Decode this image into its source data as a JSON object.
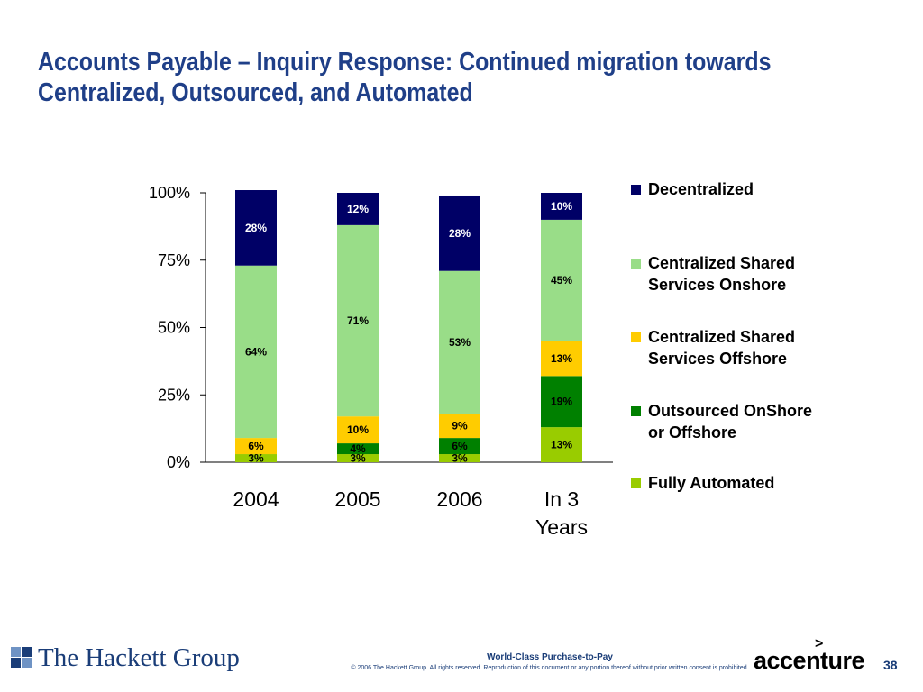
{
  "slide": {
    "title_line1": "Accounts Payable – Inquiry Response:  Continued migration towards",
    "title_line2": "Centralized, Outsourced, and Automated",
    "page_number": "38"
  },
  "footer": {
    "org": "The Hackett Group",
    "title": "World-Class Purchase-to-Pay",
    "copyright": "© 2006 The Hackett Group.  All rights reserved. Reproduction of this document or any portion thereof without prior written consent is prohibited.",
    "partner": "accenture",
    "partner_mark": ">"
  },
  "chart_data": {
    "type": "bar",
    "stacked": true,
    "categories": [
      "2004",
      "2005",
      "2006",
      "In 3 Years"
    ],
    "category_lines": [
      [
        "2004"
      ],
      [
        "2005"
      ],
      [
        "2006"
      ],
      [
        "In 3",
        "Years"
      ]
    ],
    "ylim": [
      0,
      100
    ],
    "yticks": [
      0,
      25,
      50,
      75,
      100
    ],
    "ytick_labels": [
      "0%",
      "25%",
      "50%",
      "75%",
      "100%"
    ],
    "legend_position": "right",
    "series": [
      {
        "name": "Fully Automated",
        "legend_lines": [
          "Fully Automated"
        ],
        "color": "#99cc00",
        "label_color": "#000000",
        "values": [
          3,
          3,
          3,
          13
        ],
        "labels": [
          "3%",
          "3%",
          "3%",
          "13%"
        ]
      },
      {
        "name": "Outsourced OnShore or Offshore",
        "legend_lines": [
          "Outsourced OnShore",
          "or Offshore"
        ],
        "color": "#008000",
        "label_color": "#000000",
        "values": [
          0,
          4,
          6,
          19
        ],
        "labels": [
          "",
          "4%",
          "6%",
          "19%"
        ]
      },
      {
        "name": "Centralized Shared Services Offshore",
        "legend_lines": [
          "Centralized Shared",
          "Services Offshore"
        ],
        "color": "#ffcc00",
        "label_color": "#000000",
        "values": [
          6,
          10,
          9,
          13
        ],
        "labels": [
          "6%",
          "10%",
          "9%",
          "13%"
        ]
      },
      {
        "name": "Centralized Shared Services Onshore",
        "legend_lines": [
          "Centralized Shared",
          "Services Onshore"
        ],
        "color": "#99dd88",
        "label_color": "#000000",
        "values": [
          64,
          71,
          53,
          45
        ],
        "labels": [
          "64%",
          "71%",
          "53%",
          "45%"
        ]
      },
      {
        "name": "Decentralized",
        "legend_lines": [
          "Decentralized"
        ],
        "color": "#000066",
        "label_color": "#ffffff",
        "values": [
          28,
          12,
          28,
          10
        ],
        "labels": [
          "28%",
          "12%",
          "28%",
          "10%"
        ]
      }
    ]
  }
}
